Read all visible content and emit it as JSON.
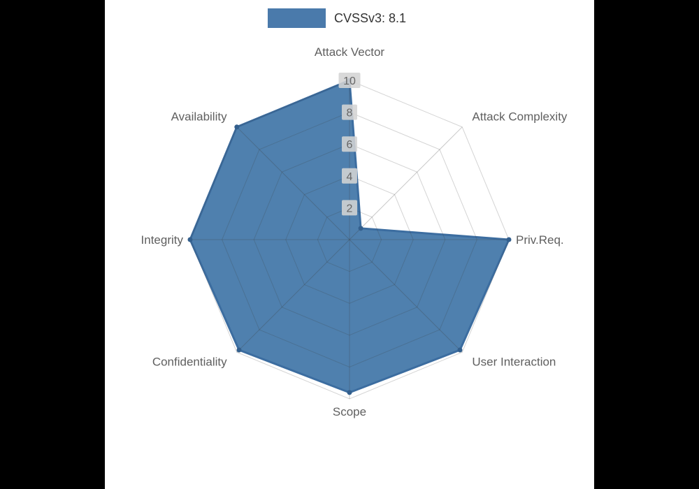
{
  "chart_data": {
    "type": "radar",
    "title": "CVSSv3: 8.1",
    "legend": {
      "label": "CVSSv3: 8.1",
      "position": "top-center",
      "swatch_color": "#4a7aab"
    },
    "categories": [
      "Attack Vector",
      "Attack Complexity",
      "Priv.Req.",
      "User Interaction",
      "Scope",
      "Confidentiality",
      "Integrity",
      "Availability"
    ],
    "series": [
      {
        "name": "CVSSv3: 8.1",
        "values": [
          10,
          1,
          10,
          9.8,
          9.6,
          9.8,
          10,
          10
        ]
      }
    ],
    "range": [
      0,
      10
    ],
    "ticks": [
      2,
      4,
      6,
      8,
      10
    ],
    "grid": "on",
    "colors": {
      "fill": "#4679aa",
      "stroke": "#3c6da0",
      "vertex": "#335f8d",
      "axis_label": "#5f5f5f",
      "tick_text": "#666666",
      "tick_bg": "#d4d4d4",
      "grid_line": "#3c3c3c",
      "figure_bg": "#ffffff",
      "page_bg": "#000000"
    }
  }
}
